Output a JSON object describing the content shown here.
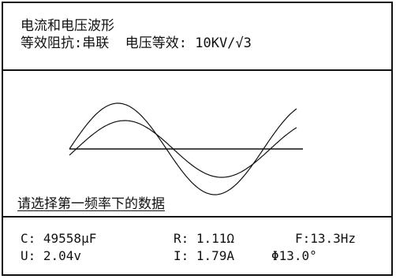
{
  "header": {
    "title": "电流和电压波形",
    "impedance_label": "等效阻抗:",
    "impedance_value": "串联",
    "voltage_label": "电压等效:",
    "voltage_value": "10KV/√3"
  },
  "prompt": "请选择第一频率下的数据",
  "readouts": {
    "capacitance": "C: 49558μF",
    "resistance": "R: 1.11Ω",
    "frequency": "F:13.3Hz",
    "voltage": "U: 2.04v",
    "current": "I: 1.79A",
    "phase": "Φ13.0°"
  },
  "colors": {
    "foreground": "#111111",
    "background": "#ffffff"
  }
}
